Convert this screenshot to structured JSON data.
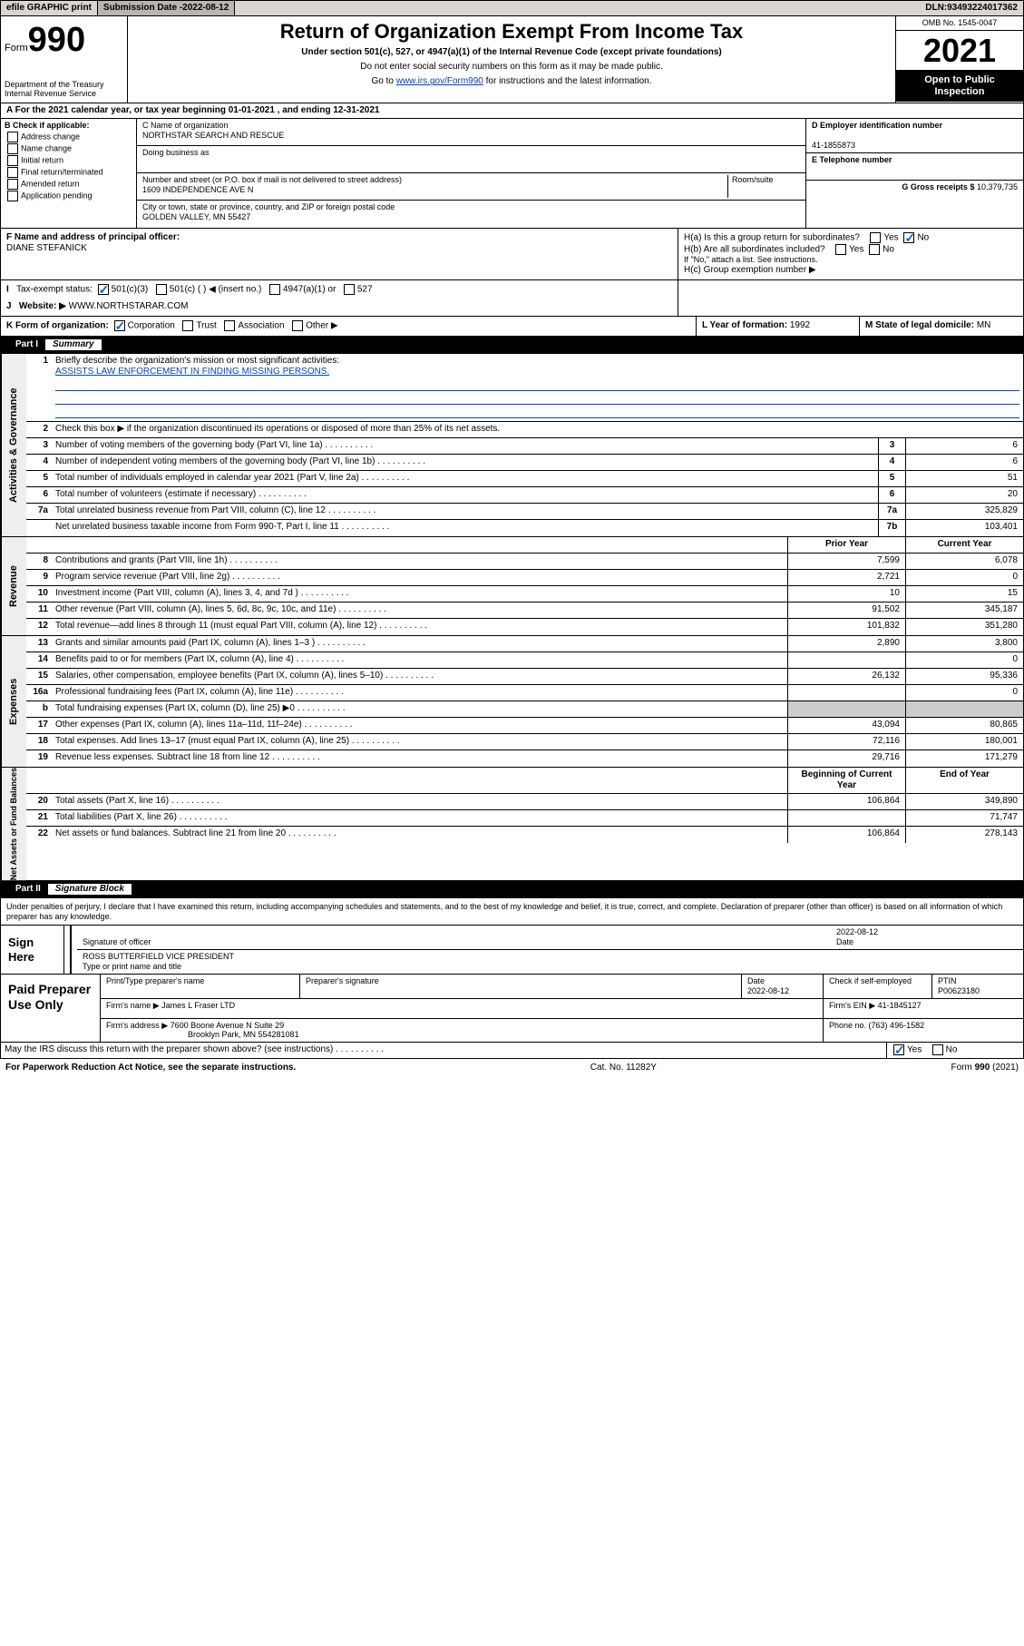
{
  "topbar": {
    "efile": "efile GRAPHIC print",
    "subdate_label": "Submission Date - ",
    "subdate": "2022-08-12",
    "dln_label": "DLN: ",
    "dln": "93493224017362"
  },
  "header": {
    "form_word": "Form",
    "form_num": "990",
    "dept": "Department of the Treasury",
    "irs": "Internal Revenue Service",
    "title": "Return of Organization Exempt From Income Tax",
    "sub": "Under section 501(c), 527, or 4947(a)(1) of the Internal Revenue Code (except private foundations)",
    "instr1": "Do not enter social security numbers on this form as it may be made public.",
    "instr2_pre": "Go to ",
    "instr2_link": "www.irs.gov/Form990",
    "instr2_post": " for instructions and the latest information.",
    "omb": "OMB No. 1545-0047",
    "year": "2021",
    "open": "Open to Public Inspection"
  },
  "taxyear": {
    "a_label": "A For the 2021 calendar year, or tax year beginning ",
    "begin": "01-01-2021",
    "mid": " , and ending ",
    "end": "12-31-2021"
  },
  "sectionB": {
    "b_label": "B Check if applicable:",
    "opts": [
      "Address change",
      "Name change",
      "Initial return",
      "Final return/terminated",
      "Amended return",
      "Application pending"
    ],
    "c_label": "C Name of organization",
    "org": "NORTHSTAR SEARCH AND RESCUE",
    "dba_label": "Doing business as",
    "dba": "",
    "addr_label": "Number and street (or P.O. box if mail is not delivered to street address)",
    "room_label": "Room/suite",
    "addr": "1609 INDEPENDENCE AVE N",
    "city_label": "City or town, state or province, country, and ZIP or foreign postal code",
    "city": "GOLDEN VALLEY, MN  55427",
    "d_label": "D Employer identification number",
    "ein": "41-1855873",
    "e_label": "E Telephone number",
    "phone": "",
    "g_label": "G Gross receipts $ ",
    "gross": "10,379,735"
  },
  "sectionFG": {
    "f_label": "F Name and address of principal officer:",
    "officer": "DIANE STEFANICK",
    "ha_label": "H(a)  Is this a group return for subordinates?",
    "hb_label": "H(b)  Are all subordinates included?",
    "hb_note": "If \"No,\" attach a list. See instructions.",
    "hc_label": "H(c)  Group exemption number ▶",
    "yes": "Yes",
    "no": "No"
  },
  "sectionI": {
    "i_label": "Tax-exempt status:",
    "opts": [
      "501(c)(3)",
      "501(c) (  ) ◀ (insert no.)",
      "4947(a)(1) or",
      "527"
    ],
    "j_label": "Website: ▶ ",
    "website": "WWW.NORTHSTARAR.COM"
  },
  "sectionK": {
    "k_label": "K Form of organization:",
    "opts": [
      "Corporation",
      "Trust",
      "Association",
      "Other ▶"
    ],
    "l_label": "L Year of formation: ",
    "l_val": "1992",
    "m_label": "M State of legal domicile: ",
    "m_val": "MN"
  },
  "part1": {
    "part": "Part I",
    "title": "Summary",
    "line1_label": "Briefly describe the organization's mission or most significant activities:",
    "mission": "ASSISTS LAW ENFORCEMENT IN FINDING MISSING PERSONS.",
    "line2": "Check this box ▶     if the organization discontinued its operations or disposed of more than 25% of its net assets.",
    "hdr_prior": "Prior Year",
    "hdr_curr": "Current Year",
    "hdr_begin": "Beginning of Current Year",
    "hdr_end": "End of Year",
    "sides": {
      "gov": "Activities & Governance",
      "rev": "Revenue",
      "exp": "Expenses",
      "net": "Net Assets or Fund Balances"
    },
    "gov_rows": [
      {
        "n": "3",
        "d": "Number of voting members of the governing body (Part VI, line 1a)",
        "en": "3",
        "v": "6"
      },
      {
        "n": "4",
        "d": "Number of independent voting members of the governing body (Part VI, line 1b)",
        "en": "4",
        "v": "6"
      },
      {
        "n": "5",
        "d": "Total number of individuals employed in calendar year 2021 (Part V, line 2a)",
        "en": "5",
        "v": "51"
      },
      {
        "n": "6",
        "d": "Total number of volunteers (estimate if necessary)",
        "en": "6",
        "v": "20"
      },
      {
        "n": "7a",
        "d": "Total unrelated business revenue from Part VIII, column (C), line 12",
        "en": "7a",
        "v": "325,829"
      },
      {
        "n": "",
        "d": "Net unrelated business taxable income from Form 990-T, Part I, line 11",
        "en": "7b",
        "v": "103,401"
      }
    ],
    "rev_rows": [
      {
        "n": "8",
        "d": "Contributions and grants (Part VIII, line 1h)",
        "p": "7,599",
        "c": "6,078"
      },
      {
        "n": "9",
        "d": "Program service revenue (Part VIII, line 2g)",
        "p": "2,721",
        "c": "0"
      },
      {
        "n": "10",
        "d": "Investment income (Part VIII, column (A), lines 3, 4, and 7d )",
        "p": "10",
        "c": "15"
      },
      {
        "n": "11",
        "d": "Other revenue (Part VIII, column (A), lines 5, 6d, 8c, 9c, 10c, and 11e)",
        "p": "91,502",
        "c": "345,187"
      },
      {
        "n": "12",
        "d": "Total revenue—add lines 8 through 11 (must equal Part VIII, column (A), line 12)",
        "p": "101,832",
        "c": "351,280"
      }
    ],
    "exp_rows": [
      {
        "n": "13",
        "d": "Grants and similar amounts paid (Part IX, column (A), lines 1–3 )",
        "p": "2,890",
        "c": "3,800"
      },
      {
        "n": "14",
        "d": "Benefits paid to or for members (Part IX, column (A), line 4)",
        "p": "",
        "c": "0"
      },
      {
        "n": "15",
        "d": "Salaries, other compensation, employee benefits (Part IX, column (A), lines 5–10)",
        "p": "26,132",
        "c": "95,336"
      },
      {
        "n": "16a",
        "d": "Professional fundraising fees (Part IX, column (A), line 11e)",
        "p": "",
        "c": "0"
      },
      {
        "n": "b",
        "d": "Total fundraising expenses (Part IX, column (D), line 25) ▶0",
        "p": "gray",
        "c": "gray"
      },
      {
        "n": "17",
        "d": "Other expenses (Part IX, column (A), lines 11a–11d, 11f–24e)",
        "p": "43,094",
        "c": "80,865"
      },
      {
        "n": "18",
        "d": "Total expenses. Add lines 13–17 (must equal Part IX, column (A), line 25)",
        "p": "72,116",
        "c": "180,001"
      },
      {
        "n": "19",
        "d": "Revenue less expenses. Subtract line 18 from line 12",
        "p": "29,716",
        "c": "171,279"
      }
    ],
    "net_rows": [
      {
        "n": "20",
        "d": "Total assets (Part X, line 16)",
        "p": "106,864",
        "c": "349,890"
      },
      {
        "n": "21",
        "d": "Total liabilities (Part X, line 26)",
        "p": "",
        "c": "71,747"
      },
      {
        "n": "22",
        "d": "Net assets or fund balances. Subtract line 21 from line 20",
        "p": "106,864",
        "c": "278,143"
      }
    ]
  },
  "part2": {
    "part": "Part II",
    "title": "Signature Block",
    "perjury": "Under penalties of perjury, I declare that I have examined this return, including accompanying schedules and statements, and to the best of my knowledge and belief, it is true, correct, and complete. Declaration of preparer (other than officer) is based on all information of which preparer has any knowledge.",
    "sign_here": "Sign Here",
    "sig_officer": "Signature of officer",
    "sig_date_label": "Date",
    "sig_date": "2022-08-12",
    "name_title_label": "Type or print name and title",
    "name_title": "ROSS BUTTERFIELD VICE PRESIDENT",
    "paid": "Paid Preparer Use Only",
    "prep_name_label": "Print/Type preparer's name",
    "prep_sig_label": "Preparer's signature",
    "prep_date_label": "Date",
    "prep_date": "2022-08-12",
    "check_self": "Check     if self-employed",
    "ptin_label": "PTIN",
    "ptin": "P00623180",
    "firm_name_label": "Firm's name    ▶ ",
    "firm_name": "James L Fraser LTD",
    "firm_ein_label": "Firm's EIN ▶ ",
    "firm_ein": "41-1845127",
    "firm_addr_label": "Firm's address ▶ ",
    "firm_addr1": "7600 Boone Avenue N Suite 29",
    "firm_addr2": "Brooklyn Park, MN  554281081",
    "firm_phone_label": "Phone no. ",
    "firm_phone": "(763) 496-1582",
    "discuss": "May the IRS discuss this return with the preparer shown above? (see instructions)",
    "yes": "Yes",
    "no": "No"
  },
  "footer": {
    "paperwork": "For Paperwork Reduction Act Notice, see the separate instructions.",
    "cat": "Cat. No. 11282Y",
    "formref": "Form 990 (2021)"
  }
}
